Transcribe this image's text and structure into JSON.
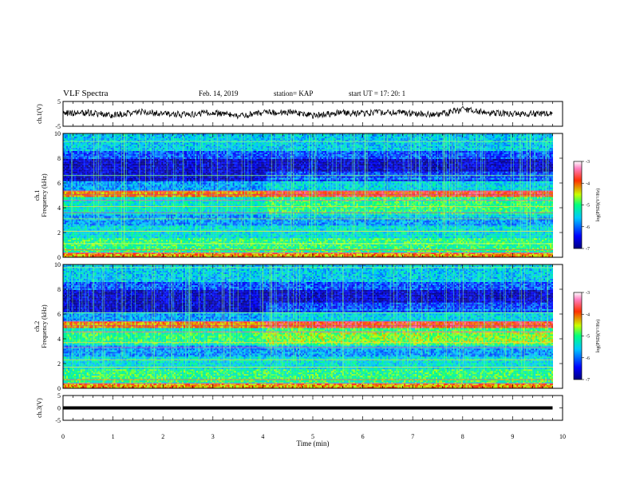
{
  "header": {
    "title": "VLF Spectra",
    "date": "Feb. 14, 2019",
    "station": "station= KAP",
    "start": "start UT =   17: 20: 1"
  },
  "chart_data": [
    {
      "type": "line",
      "name": "ch1-waveform",
      "ylabel": "ch.1(V)",
      "ylim": [
        -5,
        5
      ],
      "yticks": [
        "5",
        "-5"
      ],
      "xlim": [
        0,
        10
      ],
      "x": [
        0,
        0.5,
        1,
        1.5,
        2,
        2.5,
        3,
        3.5,
        4,
        4.5,
        5,
        5.5,
        6,
        6.5,
        7,
        7.5,
        8,
        8.5,
        9,
        9.5,
        9.8
      ],
      "y": [
        0.2,
        0.5,
        -0.6,
        0.8,
        0.1,
        -0.4,
        0.6,
        -0.9,
        0.3,
        0.7,
        -0.8,
        0.4,
        0.2,
        0.6,
        0.1,
        -0.5,
        1.8,
        0.3,
        0.2,
        0.1,
        0.4
      ]
    },
    {
      "type": "heatmap",
      "name": "ch1-spectrogram",
      "ylabel_line1": "ch.1",
      "ylabel_line2": "Frequency (kHz)",
      "ylim": [
        0,
        10
      ],
      "yticks": [
        "10",
        "8",
        "6",
        "4",
        "2",
        "0"
      ],
      "xlim": [
        0,
        10
      ],
      "colorbar": {
        "label": "log(PSD)(V²/Hz)",
        "ticks": [
          "-3",
          "-4",
          "-5",
          "-6",
          "-7"
        ],
        "range": [
          -7,
          -3
        ]
      }
    },
    {
      "type": "heatmap",
      "name": "ch2-spectrogram",
      "ylabel_line1": "ch.2",
      "ylabel_line2": "Frequency (kHz)",
      "ylim": [
        0,
        10
      ],
      "yticks": [
        "10",
        "8",
        "6",
        "4",
        "2",
        "0"
      ],
      "xlim": [
        0,
        10
      ],
      "colorbar": {
        "label": "log(PSD)(V²/Hz)",
        "ticks": [
          "-3",
          "-4",
          "-5",
          "-6",
          "-7"
        ],
        "range": [
          -7,
          -3
        ]
      }
    },
    {
      "type": "line",
      "name": "ch3-waveform",
      "ylabel": "ch.3(V)",
      "ylim": [
        -5,
        5
      ],
      "yticks": [
        "5",
        "0",
        "-5"
      ],
      "xlim": [
        0,
        10
      ],
      "x": [
        0,
        9.8
      ],
      "y": [
        0,
        0
      ]
    }
  ],
  "xaxis": {
    "label": "Time (min)",
    "ticks": [
      "0",
      "1",
      "2",
      "3",
      "4",
      "5",
      "6",
      "7",
      "8",
      "9",
      "10"
    ]
  }
}
